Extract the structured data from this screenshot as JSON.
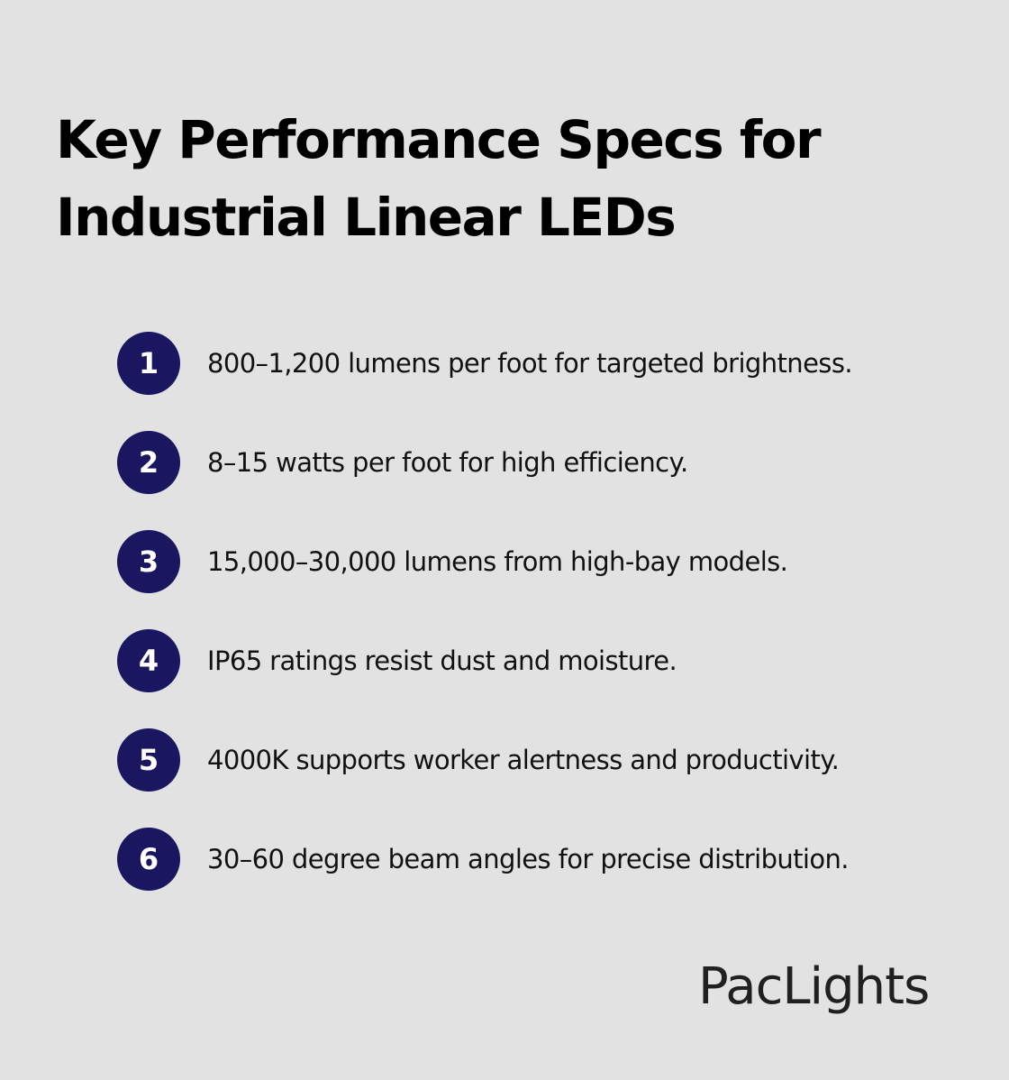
{
  "title": "Key Performance Specs for Industrial Linear LEDs",
  "items": [
    {
      "number": "1",
      "text": "800–1,200 lumens per foot for targeted brightness."
    },
    {
      "number": "2",
      "text": "8–15 watts per foot for high efficiency."
    },
    {
      "number": "3",
      "text": "15,000–30,000 lumens from high-bay models."
    },
    {
      "number": "4",
      "text": "IP65 ratings resist dust and moisture."
    },
    {
      "number": "5",
      "text": "4000K supports worker alertness and productivity."
    },
    {
      "number": "6",
      "text": "30–60 degree beam angles for precise distribution."
    }
  ],
  "brand": "PacLights",
  "colors": {
    "background": "#e1e2e1",
    "badge": "#1b1660"
  }
}
